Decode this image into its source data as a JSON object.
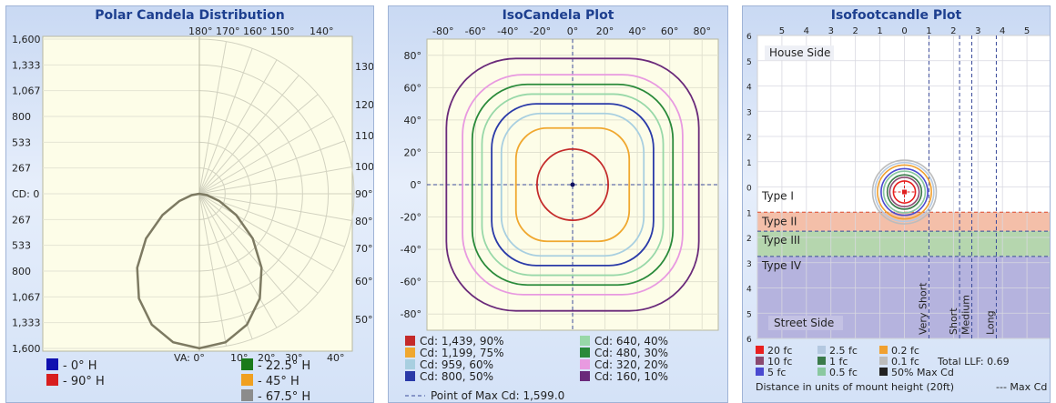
{
  "chart_data": [
    {
      "type": "polar",
      "title": "Polar Candela Distribution",
      "radial_tick_labels": [
        "1,600",
        "1,333",
        "1,067",
        "800",
        "533",
        "267",
        "CD: 0",
        "267",
        "533",
        "800",
        "1,067",
        "1,333",
        "1,600"
      ],
      "radial_max": 1600,
      "angle_ticks_top": [
        "180°",
        "170°",
        "160°",
        "150°",
        "140°"
      ],
      "angle_ticks_right": [
        "130°",
        "120°",
        "110°",
        "100°",
        "90°",
        "80°",
        "70°",
        "60°",
        "50°"
      ],
      "angle_ticks_bottom": [
        "VA: 0°",
        "10°",
        "20°",
        "30°",
        "40°"
      ],
      "series": [
        {
          "name": " - 0° H",
          "color": "#1010b0"
        },
        {
          "name": " - 90° H",
          "color": "#d81e1e"
        },
        {
          "name": " - 22.5° H",
          "color": "#1a7a1a"
        },
        {
          "name": " - 45° H",
          "color": "#f0a020"
        },
        {
          "name": " - 67.5° H",
          "color": "#8c8c8c"
        }
      ],
      "curve_color": "#7d7a62",
      "candela_by_vertical_angle": [
        [
          0,
          1599
        ],
        [
          10,
          1560
        ],
        [
          20,
          1440
        ],
        [
          30,
          1250
        ],
        [
          40,
          1000
        ],
        [
          50,
          720
        ],
        [
          60,
          440
        ],
        [
          70,
          220
        ],
        [
          80,
          80
        ],
        [
          90,
          0
        ]
      ]
    },
    {
      "type": "contour",
      "title": "IsoCandela Plot",
      "x_ticks": [
        "-80°",
        "-60°",
        "-40°",
        "-20°",
        "0°",
        "20°",
        "40°",
        "60°",
        "80°"
      ],
      "y_ticks": [
        "80°",
        "60°",
        "40°",
        "20°",
        "0°",
        "-20°",
        "-40°",
        "-60°",
        "-80°"
      ],
      "xlim": [
        -90,
        90
      ],
      "ylim": [
        -90,
        90
      ],
      "contours": [
        {
          "label": "Cd: 1,439, 90%",
          "color": "#c42a2a",
          "half_width_deg": 22
        },
        {
          "label": "Cd: 1,199, 75%",
          "color": "#f0a830",
          "half_width_deg": 35
        },
        {
          "label": "Cd: 959, 60%",
          "color": "#a8cfe0",
          "half_width_deg": 44
        },
        {
          "label": "Cd: 800, 50%",
          "color": "#2a3aa8",
          "half_width_deg": 50
        },
        {
          "label": "Cd: 640, 40%",
          "color": "#98d8a8",
          "half_width_deg": 56
        },
        {
          "label": "Cd: 480, 30%",
          "color": "#2a8a3a",
          "half_width_deg": 62
        },
        {
          "label": "Cd: 320, 20%",
          "color": "#e89ae0",
          "half_width_deg": 68
        },
        {
          "label": "Cd: 160, 10%",
          "color": "#6a2a7a",
          "half_width_deg": 78
        }
      ],
      "max_point_label": "Point of Max Cd: 1,599.0",
      "max_point": [
        0,
        0
      ]
    },
    {
      "type": "contour",
      "title": "Isofootcandle Plot",
      "x_ticks": [
        "5",
        "4",
        "3",
        "2",
        "1",
        "0",
        "1",
        "2",
        "3",
        "4",
        "5"
      ],
      "y_ticks": [
        "6",
        "5",
        "4",
        "3",
        "2",
        "1",
        "0",
        "1",
        "2",
        "3",
        "4",
        "5",
        "6"
      ],
      "xlim": [
        -6,
        6
      ],
      "ylim": [
        -6,
        6
      ],
      "zones": [
        {
          "label": "Type I",
          "from": 0,
          "to": 1,
          "color": "#ffffff"
        },
        {
          "label": "Type II",
          "from": 1,
          "to": 1.75,
          "color": "#f2b49a"
        },
        {
          "label": "Type III",
          "from": 1.75,
          "to": 2.75,
          "color": "#a8cfa0"
        },
        {
          "label": "Type IV",
          "from": 2.75,
          "to": 6,
          "color": "#a8a6d8"
        }
      ],
      "region_labels": {
        "house": "House Side",
        "street": "Street Side"
      },
      "range_lines": [
        {
          "label": "Very Short",
          "x": 1.0
        },
        {
          "label": "Short",
          "x": 2.25
        },
        {
          "label": "Medium",
          "x": 2.75
        },
        {
          "label": "Long",
          "x": 3.75
        }
      ],
      "contours": [
        {
          "label": "20 fc",
          "color": "#e82020",
          "radius": 0.45
        },
        {
          "label": "10 fc",
          "color": "#8a4a70",
          "radius": 0.6
        },
        {
          "label": "5 fc",
          "color": "#4a4ad0",
          "radius": 0.95
        },
        {
          "label": "2.5 fc",
          "color": "#b4c8e0",
          "radius": 1.2
        },
        {
          "label": "1 fc",
          "color": "#3a7a4a",
          "radius": 0.7
        },
        {
          "label": "0.5 fc",
          "color": "#8ac8a0",
          "radius": 0.85
        },
        {
          "label": "0.2 fc",
          "color": "#f0a030",
          "radius": 1.1
        },
        {
          "label": "0.1 fc",
          "color": "#bcbcbc",
          "radius": 1.3
        }
      ],
      "max_cd_marker": {
        "label": "50% Max Cd",
        "color": "#222222"
      },
      "total_llf": "Total LLF: 0.69",
      "footnote": "Distance in units of mount height (20ft)",
      "max_cd_line_label": "--- Max Cd",
      "max_cd_line_color": "#e02020"
    }
  ]
}
